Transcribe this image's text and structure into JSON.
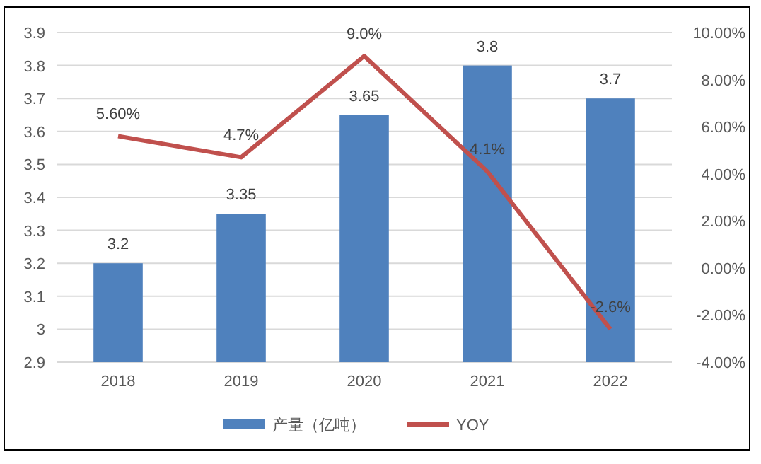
{
  "chart_data": {
    "type": "bar",
    "categories": [
      "2018",
      "2019",
      "2020",
      "2021",
      "2022"
    ],
    "series": [
      {
        "name": "产量（亿吨）",
        "color": "#4f81bd",
        "values": [
          3.2,
          3.35,
          3.65,
          3.8,
          3.7
        ],
        "value_labels": [
          "3.2",
          "3.35",
          "3.65",
          "3.8",
          "3.7"
        ]
      },
      {
        "name": "YOY",
        "type": "line",
        "axis": "y2",
        "color": "#c0504d",
        "values": [
          5.6,
          4.7,
          9.0,
          4.1,
          -2.6
        ],
        "value_labels": [
          "5.60%",
          "4.7%",
          "9.0%",
          "4.1%",
          "-2.6%"
        ],
        "marker": "none",
        "line_style": "solid"
      }
    ],
    "ylim": [
      2.9,
      3.9
    ],
    "yticks": [
      {
        "value": 2.9,
        "label": "2.9"
      },
      {
        "value": 3,
        "label": "3"
      },
      {
        "value": 3.1,
        "label": "3.1"
      },
      {
        "value": 3.2,
        "label": "3.2"
      },
      {
        "value": 3.3,
        "label": "3.3"
      },
      {
        "value": 3.4,
        "label": "3.4"
      },
      {
        "value": 3.5,
        "label": "3.5"
      },
      {
        "value": 3.6,
        "label": "3.6"
      },
      {
        "value": 3.7,
        "label": "3.7"
      },
      {
        "value": 3.8,
        "label": "3.8"
      },
      {
        "value": 3.9,
        "label": "3.9"
      }
    ],
    "y2lim": [
      -4,
      10
    ],
    "y2ticks": [
      {
        "value": -4,
        "label": "-4.00%"
      },
      {
        "value": -2,
        "label": "-2.00%"
      },
      {
        "value": 0,
        "label": "0.00%"
      },
      {
        "value": 2,
        "label": "2.00%"
      },
      {
        "value": 4,
        "label": "4.00%"
      },
      {
        "value": 6,
        "label": "6.00%"
      },
      {
        "value": 8,
        "label": "8.00%"
      },
      {
        "value": 10,
        "label": "10.00%"
      }
    ],
    "grid": "y",
    "legend": "bottom"
  }
}
